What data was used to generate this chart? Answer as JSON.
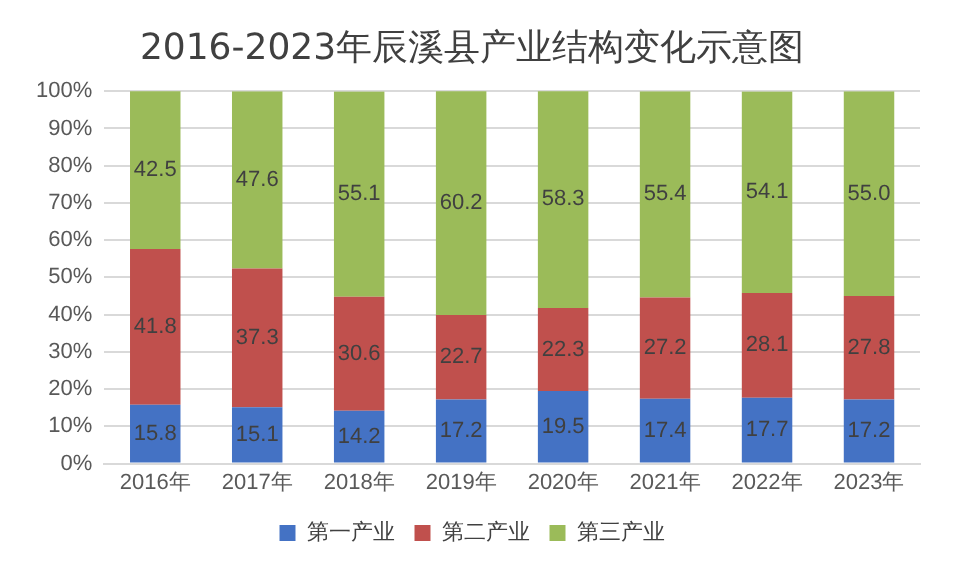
{
  "chart_data": {
    "type": "bar",
    "title": "2016-2023年辰溪县产业结构变化示意图",
    "categories": [
      "2016年",
      "2017年",
      "2018年",
      "2019年",
      "2020年",
      "2021年",
      "2022年",
      "2023年"
    ],
    "stacked": true,
    "series": [
      {
        "name": "第一产业",
        "color": "#4472c4",
        "values": [
          15.8,
          15.1,
          14.2,
          17.2,
          19.5,
          17.4,
          17.7,
          17.2
        ],
        "value_labels": [
          "15.8",
          "15.1",
          "14.2",
          "17.2",
          "19.5",
          "17.4",
          "17.7",
          "17.2"
        ]
      },
      {
        "name": "第二产业",
        "color": "#c0504d",
        "values": [
          41.8,
          37.3,
          30.6,
          22.7,
          22.3,
          27.2,
          28.1,
          27.8
        ],
        "value_labels": [
          "41.8",
          "37.3",
          "30.6",
          "22.7",
          "22.3",
          "27.2",
          "28.1",
          "27.8"
        ]
      },
      {
        "name": "第三产业",
        "color": "#9bbb59",
        "values": [
          42.5,
          47.6,
          55.1,
          60.2,
          58.3,
          55.4,
          54.1,
          55.0
        ],
        "value_labels": [
          "42.5",
          "47.6",
          "55.1",
          "60.2",
          "58.3",
          "55.4",
          "54.1",
          "55.0"
        ]
      }
    ],
    "ylim": [
      0,
      100
    ],
    "yticks": [
      {
        "value": 0,
        "label": "0%"
      },
      {
        "value": 10,
        "label": "10%"
      },
      {
        "value": 20,
        "label": "20%"
      },
      {
        "value": 30,
        "label": "30%"
      },
      {
        "value": 40,
        "label": "40%"
      },
      {
        "value": 50,
        "label": "50%"
      },
      {
        "value": 60,
        "label": "60%"
      },
      {
        "value": 70,
        "label": "70%"
      },
      {
        "value": 80,
        "label": "80%"
      },
      {
        "value": 90,
        "label": "90%"
      },
      {
        "value": 100,
        "label": "100%"
      }
    ],
    "grid": "y",
    "legend": "bottom"
  }
}
